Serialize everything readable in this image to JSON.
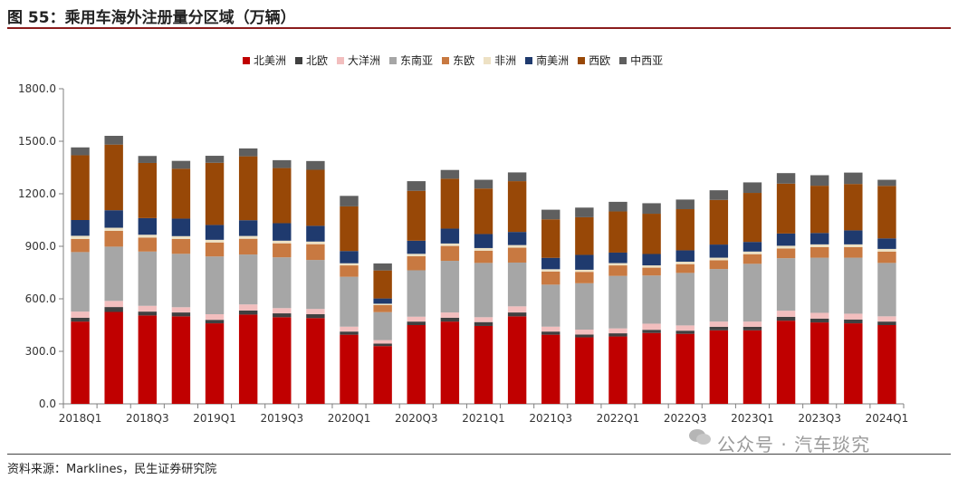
{
  "title": "图 55：乘用车海外注册量分区域（万辆）",
  "source": "资料来源：Marklines，民生证券研究院",
  "watermark": "公众号 · 汽车琰究",
  "chart_data": {
    "type": "bar",
    "stacked": true,
    "categories": [
      "2018Q1",
      "2018Q2",
      "2018Q3",
      "2018Q4",
      "2019Q1",
      "2019Q2",
      "2019Q3",
      "2019Q4",
      "2020Q1",
      "2020Q2",
      "2020Q3",
      "2020Q4",
      "2021Q1",
      "2021Q2",
      "2021Q3",
      "2021Q4",
      "2022Q1",
      "2022Q2",
      "2022Q3",
      "2022Q4",
      "2023Q1",
      "2023Q2",
      "2023Q3",
      "2023Q4",
      "2024Q1"
    ],
    "x_tick_labels": [
      "2018Q1",
      "",
      "2018Q3",
      "",
      "2019Q1",
      "",
      "2019Q3",
      "",
      "2020Q1",
      "",
      "2020Q3",
      "",
      "2021Q1",
      "",
      "2021Q3",
      "",
      "2022Q1",
      "",
      "2022Q3",
      "",
      "2023Q1",
      "",
      "2023Q3",
      "",
      "2024Q1"
    ],
    "ylim": [
      0,
      1800
    ],
    "y_ticks": [
      "0.0",
      "300.0",
      "600.0",
      "900.0",
      "1200.0",
      "1500.0",
      "1800.0"
    ],
    "y_tick_values": [
      0,
      300,
      600,
      900,
      1200,
      1500,
      1800
    ],
    "legend_position": "top",
    "series": [
      {
        "name": "北美洲",
        "color": "#c00000",
        "values": [
          470,
          525,
          505,
          500,
          460,
          510,
          495,
          490,
          395,
          330,
          450,
          470,
          445,
          500,
          395,
          380,
          385,
          405,
          400,
          420,
          420,
          475,
          465,
          460,
          450
        ]
      },
      {
        "name": "北欧",
        "color": "#404040",
        "values": [
          22,
          28,
          22,
          22,
          20,
          23,
          22,
          22,
          18,
          14,
          20,
          22,
          22,
          22,
          18,
          16,
          18,
          18,
          18,
          20,
          20,
          22,
          22,
          22,
          20
        ]
      },
      {
        "name": "大洋洲",
        "color": "#f2bebe",
        "values": [
          35,
          35,
          33,
          30,
          32,
          35,
          30,
          30,
          28,
          20,
          28,
          30,
          28,
          35,
          28,
          28,
          28,
          35,
          30,
          30,
          30,
          35,
          33,
          33,
          30
        ]
      },
      {
        "name": "东南亚",
        "color": "#a6a6a6",
        "values": [
          340,
          310,
          310,
          305,
          330,
          285,
          290,
          280,
          285,
          160,
          265,
          295,
          310,
          250,
          240,
          265,
          300,
          275,
          300,
          300,
          330,
          300,
          315,
          320,
          305
        ]
      },
      {
        "name": "东欧",
        "color": "#c87941",
        "values": [
          75,
          90,
          80,
          85,
          80,
          90,
          80,
          90,
          65,
          40,
          80,
          85,
          70,
          85,
          75,
          65,
          60,
          45,
          50,
          50,
          55,
          55,
          60,
          60,
          65
        ]
      },
      {
        "name": "非洲",
        "color": "#ede1c4",
        "values": [
          18,
          18,
          16,
          16,
          15,
          16,
          15,
          15,
          12,
          8,
          14,
          14,
          15,
          15,
          13,
          12,
          13,
          13,
          14,
          15,
          15,
          16,
          16,
          16,
          15
        ]
      },
      {
        "name": "南美洲",
        "color": "#1f3a6e",
        "values": [
          90,
          100,
          95,
          100,
          85,
          90,
          100,
          90,
          70,
          30,
          75,
          85,
          80,
          75,
          65,
          85,
          60,
          65,
          65,
          75,
          55,
          70,
          65,
          80,
          60
        ]
      },
      {
        "name": "西欧",
        "color": "#984807",
        "values": [
          370,
          375,
          315,
          285,
          355,
          365,
          315,
          320,
          255,
          160,
          285,
          285,
          260,
          290,
          220,
          215,
          235,
          230,
          235,
          255,
          280,
          285,
          270,
          265,
          300
        ]
      },
      {
        "name": "中西亚",
        "color": "#5f5f5f",
        "values": [
          45,
          50,
          40,
          45,
          40,
          45,
          45,
          50,
          60,
          40,
          55,
          50,
          50,
          50,
          55,
          55,
          55,
          60,
          55,
          55,
          60,
          60,
          60,
          65,
          35
        ]
      }
    ]
  }
}
